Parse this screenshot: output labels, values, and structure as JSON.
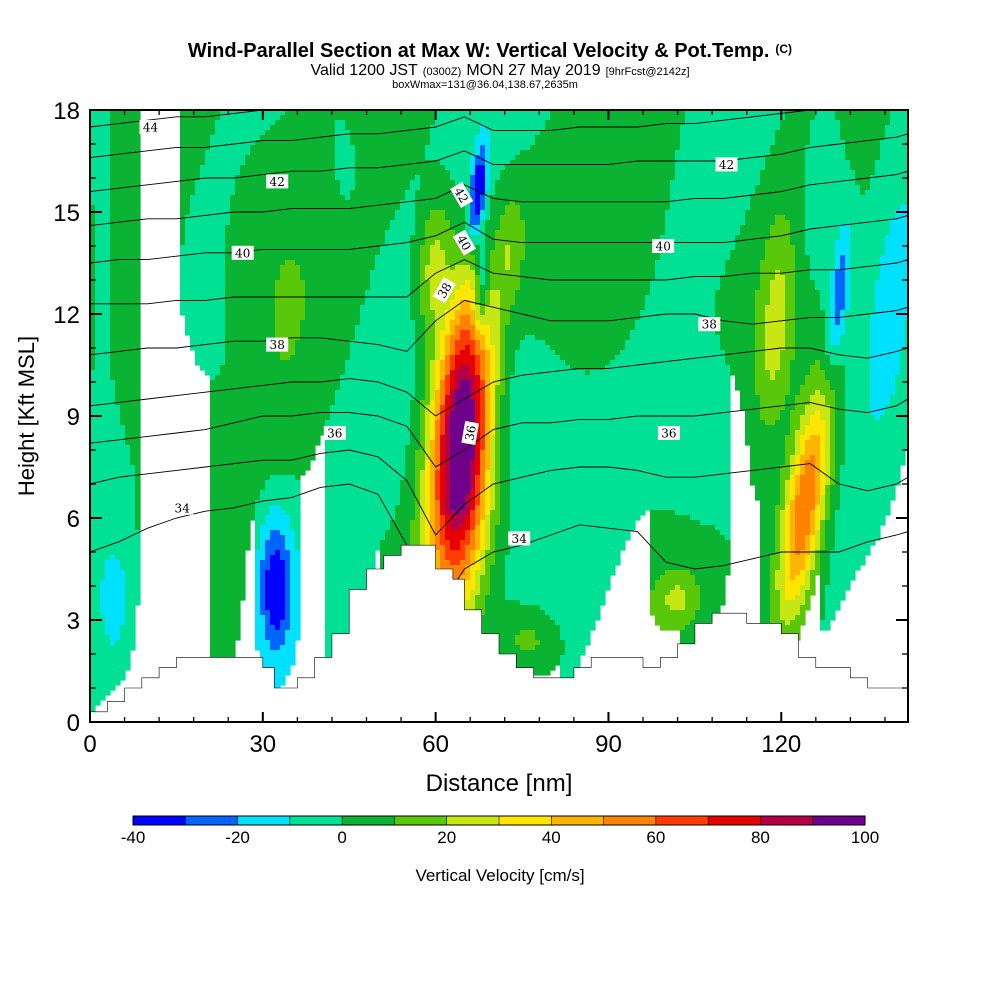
{
  "chart_data": {
    "type": "heatmap",
    "title": "Wind-Parallel Section at Max W: Vertical Velocity & Pot.Temp.",
    "title_mark": "(C)",
    "subtitle_parts": [
      "Valid 1200 JST",
      "(0300Z)",
      "MON 27 May 2019",
      "[9hrFcst@2142z]"
    ],
    "subtitle2": "boxWmax=131@36.04,138.67,2635m",
    "xlabel": "Distance [nm]",
    "ylabel": "Height [Kft MSL]",
    "xlim": [
      0,
      142
    ],
    "ylim": [
      0,
      18
    ],
    "x_ticks": [
      0,
      30,
      60,
      90,
      120
    ],
    "y_ticks": [
      0,
      3,
      6,
      9,
      12,
      15,
      18
    ],
    "colorbar": {
      "label": "Vertical Velocity [cm/s]",
      "min": -40,
      "max": 100,
      "step": 10,
      "tick_labels": [
        "-40",
        "-20",
        "0",
        "20",
        "40",
        "60",
        "80",
        "100"
      ],
      "tick_values": [
        -40,
        -20,
        0,
        20,
        40,
        60,
        80,
        100
      ],
      "colors": [
        "#0000ff",
        "#0064ff",
        "#00e1ff",
        "#00e196",
        "#0ab432",
        "#5ac80a",
        "#c8e614",
        "#ffe600",
        "#ffb400",
        "#ff8200",
        "#ff3c00",
        "#e60000",
        "#b40046",
        "#6e008c"
      ]
    },
    "background_w": 0,
    "updrafts": [
      {
        "x": 64.5,
        "z": 8.3,
        "sx": 3.6,
        "sz": 3.1,
        "tilt": 0.08,
        "amp": 112
      },
      {
        "x": 124,
        "z": 6.3,
        "sx": 2.6,
        "sz": 2.5,
        "tilt": 0.22,
        "amp": 66
      },
      {
        "x": 119,
        "z": 11.5,
        "sx": 2.3,
        "sz": 2.3,
        "tilt": 0.1,
        "amp": 20
      },
      {
        "x": 59.5,
        "z": 13.5,
        "sx": 2.0,
        "sz": 1.4,
        "tilt": 0.1,
        "amp": 25
      },
      {
        "x": 73,
        "z": 14,
        "sx": 1.6,
        "sz": 1.2,
        "tilt": 0.1,
        "amp": 15
      },
      {
        "x": 53,
        "z": 3.6,
        "sx": 2.0,
        "sz": 1.0,
        "tilt": 0,
        "amp": 15
      },
      {
        "x": 102,
        "z": 3.6,
        "sx": 2.8,
        "sz": 0.6,
        "tilt": 0,
        "amp": 18
      },
      {
        "x": 76,
        "z": 2.4,
        "sx": 3.5,
        "sz": 0.7,
        "tilt": 0,
        "amp": 18
      },
      {
        "x": 12,
        "z": 9.5,
        "sx": 9,
        "sz": 3.5,
        "tilt": 0.05,
        "amp": 8
      },
      {
        "x": 30,
        "z": 14,
        "sx": 8,
        "sz": 4,
        "tilt": 0.05,
        "amp": 8
      },
      {
        "x": 90,
        "z": 14,
        "sx": 10,
        "sz": 4,
        "tilt": 0.05,
        "amp": 8
      }
    ],
    "downdrafts": [
      {
        "x": 32,
        "z": 4.2,
        "sx": 2.4,
        "sz": 1.6,
        "tilt": 0,
        "amp": -32
      },
      {
        "x": 32.5,
        "z": 3.7,
        "sx": 1.0,
        "sz": 0.7,
        "tilt": 0,
        "amp": -14
      },
      {
        "x": 67.3,
        "z": 15.5,
        "sx": 1.0,
        "sz": 1.0,
        "tilt": 0.14,
        "amp": -45
      },
      {
        "x": 68,
        "z": 12.7,
        "sx": 0.9,
        "sz": 1.0,
        "tilt": 0.1,
        "amp": -30
      },
      {
        "x": 73,
        "z": 9.2,
        "sx": 7,
        "sz": 2.2,
        "tilt": 0.12,
        "amp": -16
      },
      {
        "x": 107,
        "z": 8.2,
        "sx": 6,
        "sz": 1.8,
        "tilt": 0.08,
        "amp": -14
      },
      {
        "x": 130,
        "z": 12.5,
        "sx": 1.2,
        "sz": 1.5,
        "tilt": 0.15,
        "amp": -28
      },
      {
        "x": 127,
        "z": 15.5,
        "sx": 3,
        "sz": 2,
        "tilt": 0.15,
        "amp": -12
      },
      {
        "x": 4.5,
        "z": 3.4,
        "sx": 2,
        "sz": 1.3,
        "tilt": 0,
        "amp": -14
      },
      {
        "x": 24,
        "z": 10,
        "sx": 5,
        "sz": 2.5,
        "tilt": 0.05,
        "amp": -8
      },
      {
        "x": 2,
        "z": 14,
        "sx": 3,
        "sz": 4,
        "tilt": 0.05,
        "amp": -8
      },
      {
        "x": 44,
        "z": 16,
        "sx": 4,
        "sz": 2,
        "tilt": 0.1,
        "amp": -8
      },
      {
        "x": 84,
        "z": 16,
        "sx": 4,
        "sz": 2,
        "tilt": 0.1,
        "amp": -8
      },
      {
        "x": 139,
        "z": 12,
        "sx": 3,
        "sz": 4,
        "tilt": 0.1,
        "amp": -8
      }
    ],
    "terrain": [
      {
        "x": 0,
        "z": 0.3
      },
      {
        "x": 3,
        "z": 0.6
      },
      {
        "x": 6,
        "z": 1.0
      },
      {
        "x": 9,
        "z": 1.3
      },
      {
        "x": 12,
        "z": 1.6
      },
      {
        "x": 15,
        "z": 1.9
      },
      {
        "x": 18,
        "z": 1.9
      },
      {
        "x": 21,
        "z": 1.9
      },
      {
        "x": 24,
        "z": 1.9
      },
      {
        "x": 27,
        "z": 1.9
      },
      {
        "x": 30,
        "z": 1.6
      },
      {
        "x": 32,
        "z": 1.0
      },
      {
        "x": 36,
        "z": 1.3
      },
      {
        "x": 39,
        "z": 1.9
      },
      {
        "x": 42,
        "z": 2.6
      },
      {
        "x": 45,
        "z": 3.9
      },
      {
        "x": 48,
        "z": 4.5
      },
      {
        "x": 51,
        "z": 4.9
      },
      {
        "x": 54,
        "z": 5.2
      },
      {
        "x": 57,
        "z": 5.2
      },
      {
        "x": 60,
        "z": 4.5
      },
      {
        "x": 63,
        "z": 4.2
      },
      {
        "x": 65,
        "z": 3.3
      },
      {
        "x": 68,
        "z": 2.6
      },
      {
        "x": 71,
        "z": 2.0
      },
      {
        "x": 74,
        "z": 1.6
      },
      {
        "x": 77,
        "z": 1.3
      },
      {
        "x": 81,
        "z": 1.3
      },
      {
        "x": 84,
        "z": 1.6
      },
      {
        "x": 87,
        "z": 1.9
      },
      {
        "x": 90,
        "z": 1.9
      },
      {
        "x": 93,
        "z": 1.9
      },
      {
        "x": 96,
        "z": 1.6
      },
      {
        "x": 99,
        "z": 1.9
      },
      {
        "x": 102,
        "z": 2.3
      },
      {
        "x": 105,
        "z": 2.9
      },
      {
        "x": 108,
        "z": 3.2
      },
      {
        "x": 111,
        "z": 3.2
      },
      {
        "x": 114,
        "z": 2.9
      },
      {
        "x": 117,
        "z": 2.9
      },
      {
        "x": 120,
        "z": 2.6
      },
      {
        "x": 123,
        "z": 1.9
      },
      {
        "x": 126,
        "z": 1.6
      },
      {
        "x": 129,
        "z": 1.6
      },
      {
        "x": 132,
        "z": 1.3
      },
      {
        "x": 135,
        "z": 1.0
      },
      {
        "x": 138,
        "z": 1.0
      },
      {
        "x": 142,
        "z": 1.0
      }
    ],
    "theta_contours": [
      {
        "value": 34,
        "z": [
          5.0,
          5.3,
          5.7,
          6.0,
          6.2,
          6.3,
          6.5,
          6.6,
          6.9,
          7.0,
          6.7,
          5.2,
          3.2,
          4.5,
          5.0,
          5.2,
          5.5,
          5.8,
          5.7,
          5.6,
          4.7,
          4.5,
          4.6,
          4.8,
          5.0,
          5.0,
          5.0,
          5.3,
          5.5,
          5.6
        ]
      },
      {
        "value": 35,
        "z": [
          7.0,
          7.2,
          7.3,
          7.4,
          7.5,
          7.6,
          7.7,
          7.7,
          7.9,
          8.0,
          7.8,
          7.1,
          5.5,
          6.4,
          7.0,
          7.2,
          7.4,
          7.5,
          7.5,
          7.4,
          7.2,
          7.2,
          7.3,
          7.4,
          7.5,
          7.6,
          7.0,
          6.8,
          7.0,
          7.2
        ]
      },
      {
        "value": 36,
        "z": [
          8.2,
          8.3,
          8.4,
          8.5,
          8.6,
          8.8,
          9.0,
          9.0,
          9.1,
          9.1,
          9.0,
          8.7,
          7.5,
          8.0,
          8.6,
          8.8,
          8.8,
          8.9,
          8.9,
          9.0,
          9.0,
          9.0,
          9.1,
          9.2,
          9.3,
          9.4,
          9.2,
          9.1,
          9.3,
          9.5
        ]
      },
      {
        "value": 37,
        "z": [
          9.3,
          9.4,
          9.5,
          9.6,
          9.7,
          9.8,
          9.9,
          10.0,
          10.0,
          10.1,
          10.0,
          9.7,
          9.0,
          9.5,
          10.0,
          10.2,
          10.3,
          10.4,
          10.4,
          10.5,
          10.6,
          10.7,
          10.8,
          10.9,
          11.0,
          11.0,
          10.8,
          10.7,
          10.9,
          11.0
        ]
      },
      {
        "value": 38,
        "z": [
          10.8,
          10.9,
          11.0,
          11.0,
          11.1,
          11.2,
          11.2,
          11.3,
          11.3,
          11.2,
          11.1,
          10.9,
          11.8,
          12.4,
          12.2,
          12.0,
          11.8,
          11.8,
          11.8,
          11.9,
          12.0,
          12.0,
          11.8,
          11.7,
          11.8,
          11.9,
          11.9,
          12.0,
          12.1,
          12.2
        ]
      },
      {
        "value": 39,
        "z": [
          12.3,
          12.3,
          12.3,
          12.4,
          12.4,
          12.5,
          12.5,
          12.5,
          12.5,
          12.5,
          12.5,
          12.5,
          13.2,
          13.6,
          13.2,
          13.1,
          13.0,
          13.0,
          13.0,
          13.0,
          13.0,
          13.1,
          13.1,
          13.2,
          13.2,
          13.3,
          13.3,
          13.4,
          13.5,
          13.6
        ]
      },
      {
        "value": 40,
        "z": [
          13.5,
          13.6,
          13.6,
          13.7,
          13.8,
          13.8,
          13.9,
          13.9,
          13.9,
          13.9,
          14.0,
          14.1,
          14.3,
          14.7,
          14.2,
          14.1,
          14.1,
          14.1,
          14.1,
          14.1,
          14.1,
          14.1,
          14.1,
          14.2,
          14.3,
          14.5,
          14.6,
          14.7,
          14.8,
          14.9
        ]
      },
      {
        "value": 41,
        "z": [
          14.6,
          14.7,
          14.8,
          14.8,
          14.9,
          15.0,
          15.0,
          15.1,
          15.1,
          15.1,
          15.2,
          15.3,
          15.4,
          15.8,
          15.4,
          15.3,
          15.3,
          15.3,
          15.3,
          15.3,
          15.3,
          15.4,
          15.4,
          15.5,
          15.6,
          15.8,
          15.9,
          16.0,
          16.1,
          16.2
        ]
      },
      {
        "value": 42,
        "z": [
          15.6,
          15.7,
          15.8,
          15.9,
          16.0,
          16.0,
          16.1,
          16.2,
          16.2,
          16.3,
          16.3,
          16.4,
          16.5,
          16.8,
          16.4,
          16.4,
          16.4,
          16.4,
          16.4,
          16.5,
          16.5,
          16.5,
          16.5,
          16.6,
          16.7,
          16.9,
          17.0,
          17.1,
          17.2,
          17.3
        ]
      },
      {
        "value": 43,
        "z": [
          16.6,
          16.7,
          16.8,
          16.9,
          16.9,
          17.0,
          17.1,
          17.1,
          17.2,
          17.3,
          17.3,
          17.4,
          17.5,
          17.8,
          17.4,
          17.4,
          17.4,
          17.5,
          17.5,
          17.5,
          17.6,
          17.6,
          17.7,
          17.8,
          17.9,
          18.0,
          18.1,
          18.2,
          18.3,
          18.4
        ]
      },
      {
        "value": 44,
        "z": [
          17.5,
          17.6,
          17.7,
          17.8,
          17.8,
          17.9,
          18.0,
          18.0,
          18.1,
          18.2,
          18.3,
          18.4,
          18.5,
          18.7,
          18.5,
          18.5,
          18.6,
          18.6,
          18.7,
          18.8,
          18.9,
          19.0,
          19.1,
          19.2,
          19.3,
          19.4,
          19.5,
          19.6,
          19.7,
          19.8
        ]
      }
    ],
    "theta_x": [
      0,
      5,
      10,
      15,
      20,
      25,
      30,
      35,
      40,
      45,
      50,
      55,
      60,
      65,
      70,
      75,
      80,
      85,
      90,
      95,
      100,
      105,
      110,
      115,
      120,
      125,
      130,
      135,
      140,
      142
    ],
    "theta_labels": [
      {
        "text": "44",
        "x": 10.5,
        "z": 17.5,
        "angle": 0
      },
      {
        "text": "42",
        "x": 32.5,
        "z": 15.9,
        "angle": 0
      },
      {
        "text": "40",
        "x": 26.5,
        "z": 13.8,
        "angle": 0
      },
      {
        "text": "38",
        "x": 32.5,
        "z": 11.1,
        "angle": 0
      },
      {
        "text": "36",
        "x": 42.5,
        "z": 8.5,
        "angle": 0
      },
      {
        "text": "34",
        "x": 16,
        "z": 6.3,
        "angle": 0
      },
      {
        "text": "42",
        "x": 64.5,
        "z": 15.5,
        "angle": 60
      },
      {
        "text": "40",
        "x": 65,
        "z": 14.1,
        "angle": 60
      },
      {
        "text": "38",
        "x": 61.5,
        "z": 12.7,
        "angle": -60
      },
      {
        "text": "36",
        "x": 66,
        "z": 8.5,
        "angle": -80
      },
      {
        "text": "34",
        "x": 74.5,
        "z": 5.4,
        "angle": 0
      },
      {
        "text": "42",
        "x": 110.5,
        "z": 16.4,
        "angle": 0
      },
      {
        "text": "40",
        "x": 99.5,
        "z": 14.0,
        "angle": 0
      },
      {
        "text": "38",
        "x": 107.5,
        "z": 11.7,
        "angle": 0
      },
      {
        "text": "36",
        "x": 100.5,
        "z": 8.5,
        "angle": 0
      }
    ]
  }
}
